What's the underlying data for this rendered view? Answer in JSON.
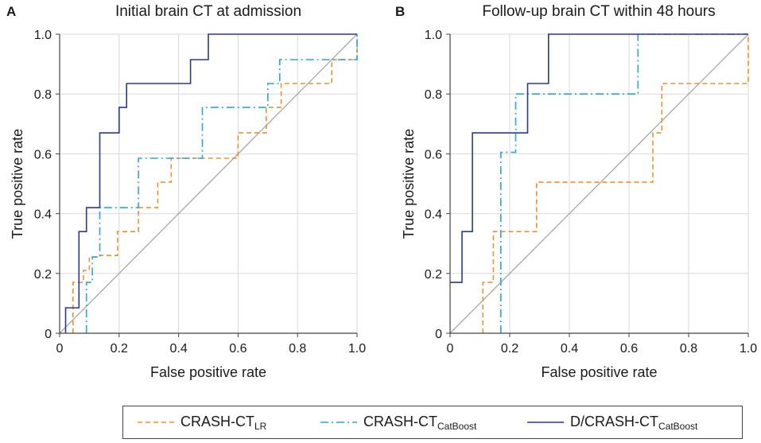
{
  "chart_data": [
    {
      "type": "line",
      "panel_label": "A",
      "title": "Initial brain CT at admission",
      "xlabel": "False positive rate",
      "ylabel": "True positive rate",
      "xlim": [
        0,
        1
      ],
      "ylim": [
        0,
        1
      ],
      "x_ticks": [
        "0",
        "0.2",
        "0.4",
        "0.6",
        "0.8",
        "1.0"
      ],
      "y_ticks": [
        "0",
        "0.2",
        "0.4",
        "0.6",
        "0.8",
        "1.0"
      ],
      "grid": true,
      "series": [
        {
          "name": "CRASH-CT_LR",
          "key": "lr",
          "points": [
            [
              0.045,
              0
            ],
            [
              0.045,
              0.085
            ],
            [
              0.045,
              0.17
            ],
            [
              0.08,
              0.17
            ],
            [
              0.08,
              0.21
            ],
            [
              0.1,
              0.21
            ],
            [
              0.1,
              0.255
            ],
            [
              0.135,
              0.255
            ],
            [
              0.135,
              0.26
            ],
            [
              0.195,
              0.26
            ],
            [
              0.195,
              0.34
            ],
            [
              0.265,
              0.34
            ],
            [
              0.265,
              0.42
            ],
            [
              0.33,
              0.42
            ],
            [
              0.33,
              0.505
            ],
            [
              0.375,
              0.505
            ],
            [
              0.375,
              0.585
            ],
            [
              0.6,
              0.585
            ],
            [
              0.6,
              0.67
            ],
            [
              0.695,
              0.67
            ],
            [
              0.695,
              0.755
            ],
            [
              0.745,
              0.755
            ],
            [
              0.745,
              0.835
            ],
            [
              0.915,
              0.835
            ],
            [
              0.915,
              0.915
            ],
            [
              1.0,
              0.915
            ],
            [
              1.0,
              1.0
            ]
          ]
        },
        {
          "name": "CRASH-CT_CatBoost",
          "key": "catboost",
          "points": [
            [
              0.09,
              0
            ],
            [
              0.09,
              0.09
            ],
            [
              0.09,
              0.17
            ],
            [
              0.11,
              0.17
            ],
            [
              0.11,
              0.255
            ],
            [
              0.135,
              0.255
            ],
            [
              0.135,
              0.42
            ],
            [
              0.265,
              0.42
            ],
            [
              0.265,
              0.585
            ],
            [
              0.48,
              0.585
            ],
            [
              0.48,
              0.755
            ],
            [
              0.7,
              0.755
            ],
            [
              0.7,
              0.835
            ],
            [
              0.74,
              0.835
            ],
            [
              0.74,
              0.915
            ],
            [
              1.0,
              0.915
            ],
            [
              1.0,
              1.0
            ]
          ]
        },
        {
          "name": "D/CRASH-CT_CatBoost",
          "key": "dcatboost",
          "points": [
            [
              0.02,
              0
            ],
            [
              0.02,
              0.085
            ],
            [
              0.065,
              0.085
            ],
            [
              0.065,
              0.34
            ],
            [
              0.09,
              0.34
            ],
            [
              0.09,
              0.42
            ],
            [
              0.135,
              0.42
            ],
            [
              0.135,
              0.67
            ],
            [
              0.2,
              0.67
            ],
            [
              0.2,
              0.755
            ],
            [
              0.225,
              0.755
            ],
            [
              0.225,
              0.835
            ],
            [
              0.44,
              0.835
            ],
            [
              0.44,
              0.915
            ],
            [
              0.5,
              0.915
            ],
            [
              0.5,
              1.0
            ],
            [
              1.0,
              1.0
            ]
          ]
        }
      ]
    },
    {
      "type": "line",
      "panel_label": "B",
      "title": "Follow-up brain CT within 48 hours",
      "xlabel": "False positive rate",
      "ylabel": "True positive rate",
      "xlim": [
        0,
        1
      ],
      "ylim": [
        0,
        1
      ],
      "x_ticks": [
        "0",
        "0.2",
        "0.4",
        "0.6",
        "0.8",
        "1.0"
      ],
      "y_ticks": [
        "0",
        "0.2",
        "0.4",
        "0.6",
        "0.8",
        "1.0"
      ],
      "grid": true,
      "series": [
        {
          "name": "CRASH-CT_LR",
          "key": "lr",
          "points": [
            [
              0.11,
              0
            ],
            [
              0.11,
              0.17
            ],
            [
              0.145,
              0.17
            ],
            [
              0.145,
              0.34
            ],
            [
              0.29,
              0.34
            ],
            [
              0.29,
              0.505
            ],
            [
              0.68,
              0.505
            ],
            [
              0.68,
              0.67
            ],
            [
              0.71,
              0.67
            ],
            [
              0.71,
              0.835
            ],
            [
              1.0,
              0.835
            ],
            [
              1.0,
              1.0
            ]
          ]
        },
        {
          "name": "CRASH-CT_CatBoost",
          "key": "catboost",
          "points": [
            [
              0.17,
              0
            ],
            [
              0.17,
              0.605
            ],
            [
              0.22,
              0.605
            ],
            [
              0.22,
              0.8
            ],
            [
              0.63,
              0.8
            ],
            [
              0.63,
              1.0
            ],
            [
              1.0,
              1.0
            ]
          ]
        },
        {
          "name": "D/CRASH-CT_CatBoost",
          "key": "dcatboost",
          "points": [
            [
              0,
              0.17
            ],
            [
              0.04,
              0.17
            ],
            [
              0.04,
              0.34
            ],
            [
              0.075,
              0.34
            ],
            [
              0.075,
              0.67
            ],
            [
              0.26,
              0.67
            ],
            [
              0.26,
              0.835
            ],
            [
              0.33,
              0.835
            ],
            [
              0.33,
              1.0
            ],
            [
              1.0,
              1.0
            ]
          ]
        }
      ]
    }
  ],
  "legend": {
    "items": [
      {
        "key": "lr",
        "base": "CRASH-CT",
        "sub": "LR"
      },
      {
        "key": "catboost",
        "base": "CRASH-CT",
        "sub": "CatBoost"
      },
      {
        "key": "dcatboost",
        "base": "D/CRASH-CT",
        "sub": "CatBoost"
      }
    ]
  },
  "styles": {
    "lr": {
      "color": "#f0922b",
      "dash": "6,4"
    },
    "catboost": {
      "color": "#2aa7d9",
      "dash": "10,4,2,4"
    },
    "dcatboost": {
      "color": "#2a3a8f",
      "dash": ""
    },
    "diagonal": {
      "color": "#a8a8a8"
    },
    "grid": {
      "color": "#d9d9d9"
    },
    "axis": {
      "color": "#444444"
    }
  }
}
